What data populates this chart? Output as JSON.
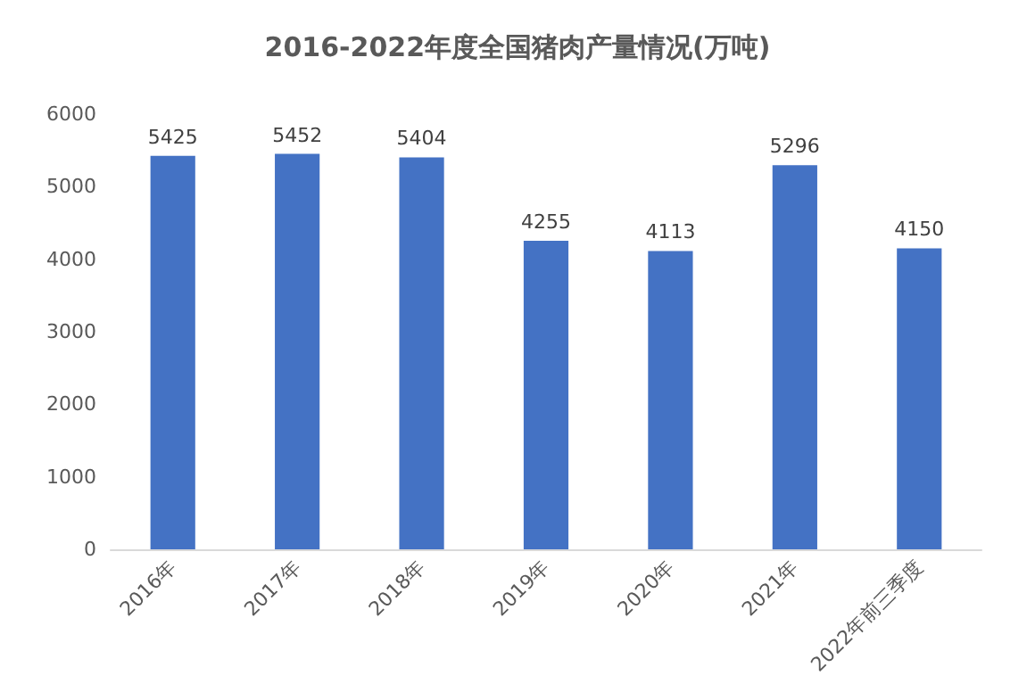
{
  "chart_data": {
    "type": "bar",
    "title": "2016-2022年度全国猪肉产量情况(万吨)",
    "categories": [
      "2016年",
      "2017年",
      "2018年",
      "2019年",
      "2020年",
      "2021年",
      "2022年前三季度"
    ],
    "values": [
      5425,
      5452,
      5404,
      4255,
      4113,
      5296,
      4150
    ],
    "color": "#4472c4",
    "ylim": [
      0,
      6000
    ],
    "yticks": [
      0,
      1000,
      2000,
      3000,
      4000,
      5000,
      6000
    ],
    "grid": false,
    "data_labels": true
  }
}
